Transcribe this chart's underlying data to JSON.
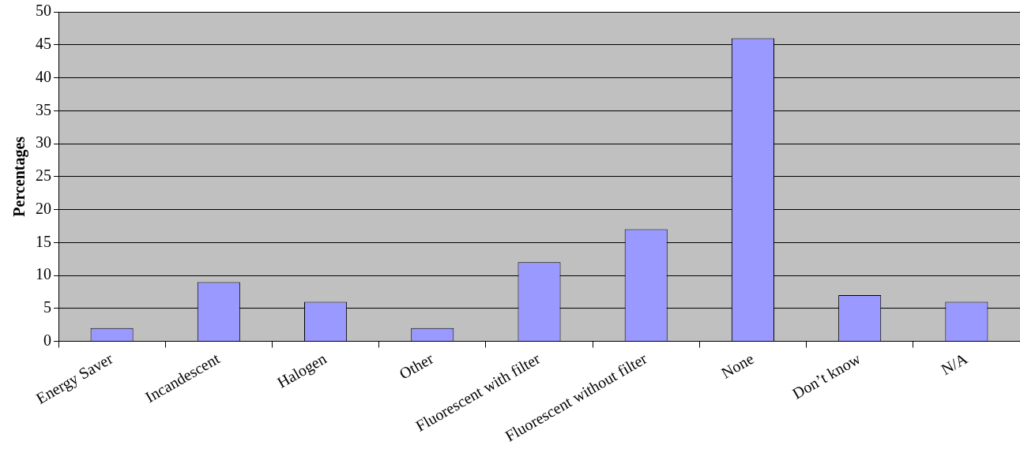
{
  "chart_data": {
    "type": "bar",
    "ylabel": "Percentages",
    "categories": [
      "Energy Saver",
      "Incandescent",
      "Halogen",
      "Other",
      "Fluorescent with filter",
      "Fluorescent without filter",
      "None",
      "Don’t know",
      "N/A"
    ],
    "values": [
      2,
      9,
      6,
      2,
      12,
      17,
      46,
      7,
      6
    ],
    "color": "#9999ff",
    "ylim": [
      0,
      50
    ],
    "yticks": [
      0,
      5,
      10,
      15,
      20,
      25,
      30,
      35,
      40,
      45,
      50
    ],
    "grid": "y"
  }
}
